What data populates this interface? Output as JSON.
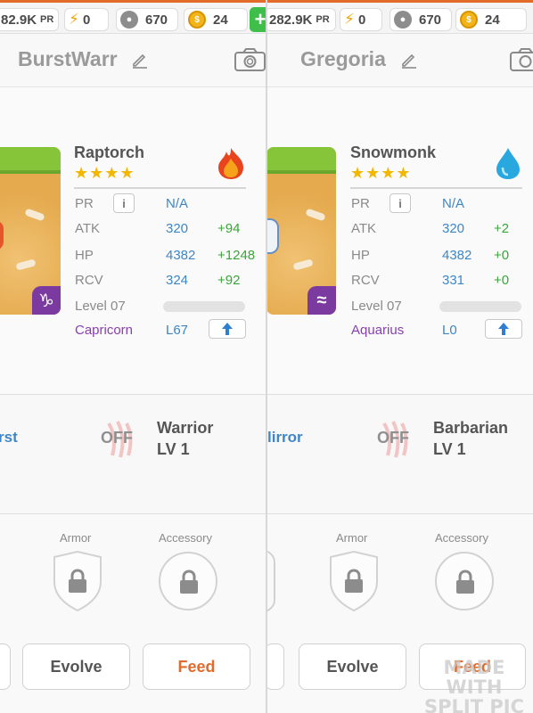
{
  "panels": [
    {
      "topbar": {
        "pr_value": "82.9K",
        "pr_label": "PR",
        "energy": "0",
        "paws": "670",
        "coins": "24",
        "plus": "+"
      },
      "header": {
        "name": "BurstWarr"
      },
      "monster": {
        "name": "Raptorch",
        "stars": "★★★★",
        "element": "fire",
        "zodiac_symbol": "♑",
        "stats": {
          "pr_label": "PR",
          "pr_value": "N/A",
          "info": "i",
          "atk_label": "ATK",
          "atk": "320",
          "atk_bonus": "+94",
          "hp_label": "HP",
          "hp": "4382",
          "hp_bonus": "+1248",
          "rcv_label": "RCV",
          "rcv": "324",
          "rcv_bonus": "+92",
          "level": "Level 07",
          "zodiac": "Capricorn",
          "l_level": "L67"
        }
      },
      "skill": {
        "name": "rst",
        "status": "OFF",
        "class": "Warrior",
        "class_level": "LV 1"
      },
      "equipment": {
        "armor_label": "Armor",
        "accessory_label": "Accessory"
      },
      "buttons": {
        "evolve": "Evolve",
        "feed": "Feed"
      }
    },
    {
      "topbar": {
        "pr_value": "282.9K",
        "pr_label": "PR",
        "energy": "0",
        "paws": "670",
        "coins": "24"
      },
      "header": {
        "name": "Gregoria"
      },
      "monster": {
        "name": "Snowmonk",
        "stars": "★★★★",
        "element": "water",
        "zodiac_symbol": "≈",
        "stats": {
          "pr_label": "PR",
          "pr_value": "N/A",
          "info": "i",
          "atk_label": "ATK",
          "atk": "320",
          "atk_bonus": "+2",
          "hp_label": "HP",
          "hp": "4382",
          "hp_bonus": "+0",
          "rcv_label": "RCV",
          "rcv": "331",
          "rcv_bonus": "+0",
          "level": "Level 07",
          "zodiac": "Aquarius",
          "l_level": "L0"
        }
      },
      "skill": {
        "name": "lirror",
        "status": "OFF",
        "class": "Barbarian",
        "class_level": "LV 1"
      },
      "equipment": {
        "armor_label": "Armor",
        "accessory_label": "Accessory"
      },
      "buttons": {
        "evolve": "Evolve",
        "feed": "Feed"
      }
    }
  ],
  "watermark": {
    "line1": "MADE WITH",
    "line2": "SPLIT PIC"
  },
  "colors": {
    "accent_orange": "#e36b2a",
    "value_blue": "#3f86c6",
    "bonus_green": "#3aa53a",
    "zodiac_purple": "#8a3fb0"
  }
}
